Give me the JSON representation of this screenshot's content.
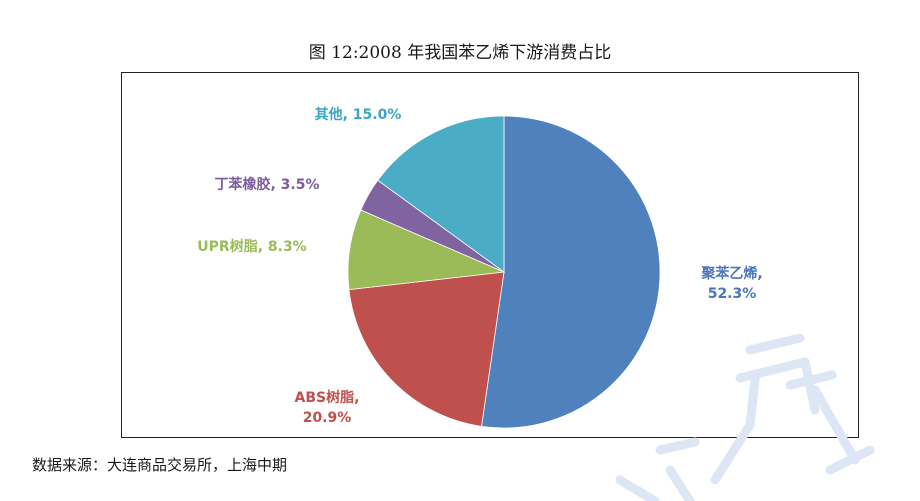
{
  "title": "图 12:2008 年我国苯乙烯下游消费占比",
  "source": "数据来源：大连商品交易所，上海中期",
  "chart_data": {
    "type": "pie",
    "start_angle_deg": 0,
    "direction": "clockwise",
    "slices": [
      {
        "name": "聚苯乙烯",
        "value": 52.3,
        "label": [
          "聚苯乙烯,",
          "52.3%"
        ],
        "color": "#4f81bd",
        "label_color": "#4a76b8"
      },
      {
        "name": "ABS树脂",
        "value": 20.9,
        "label": [
          "ABS树脂,",
          "20.9%"
        ],
        "color": "#c0504d",
        "label_color": "#c0504d"
      },
      {
        "name": "UPR树脂",
        "value": 8.3,
        "label": [
          "UPR树脂, 8.3%"
        ],
        "color": "#9bbb59",
        "label_color": "#9bbb59"
      },
      {
        "name": "丁苯橡胶",
        "value": 3.5,
        "label": [
          "丁苯橡胶, 3.5%"
        ],
        "color": "#8064a2",
        "label_color": "#7a5c9e"
      },
      {
        "name": "其他",
        "value": 15.0,
        "label": [
          "其他, 15.0%"
        ],
        "color": "#4bacc6",
        "label_color": "#3aa5c4"
      }
    ]
  },
  "watermark_color": "#dce6f4"
}
